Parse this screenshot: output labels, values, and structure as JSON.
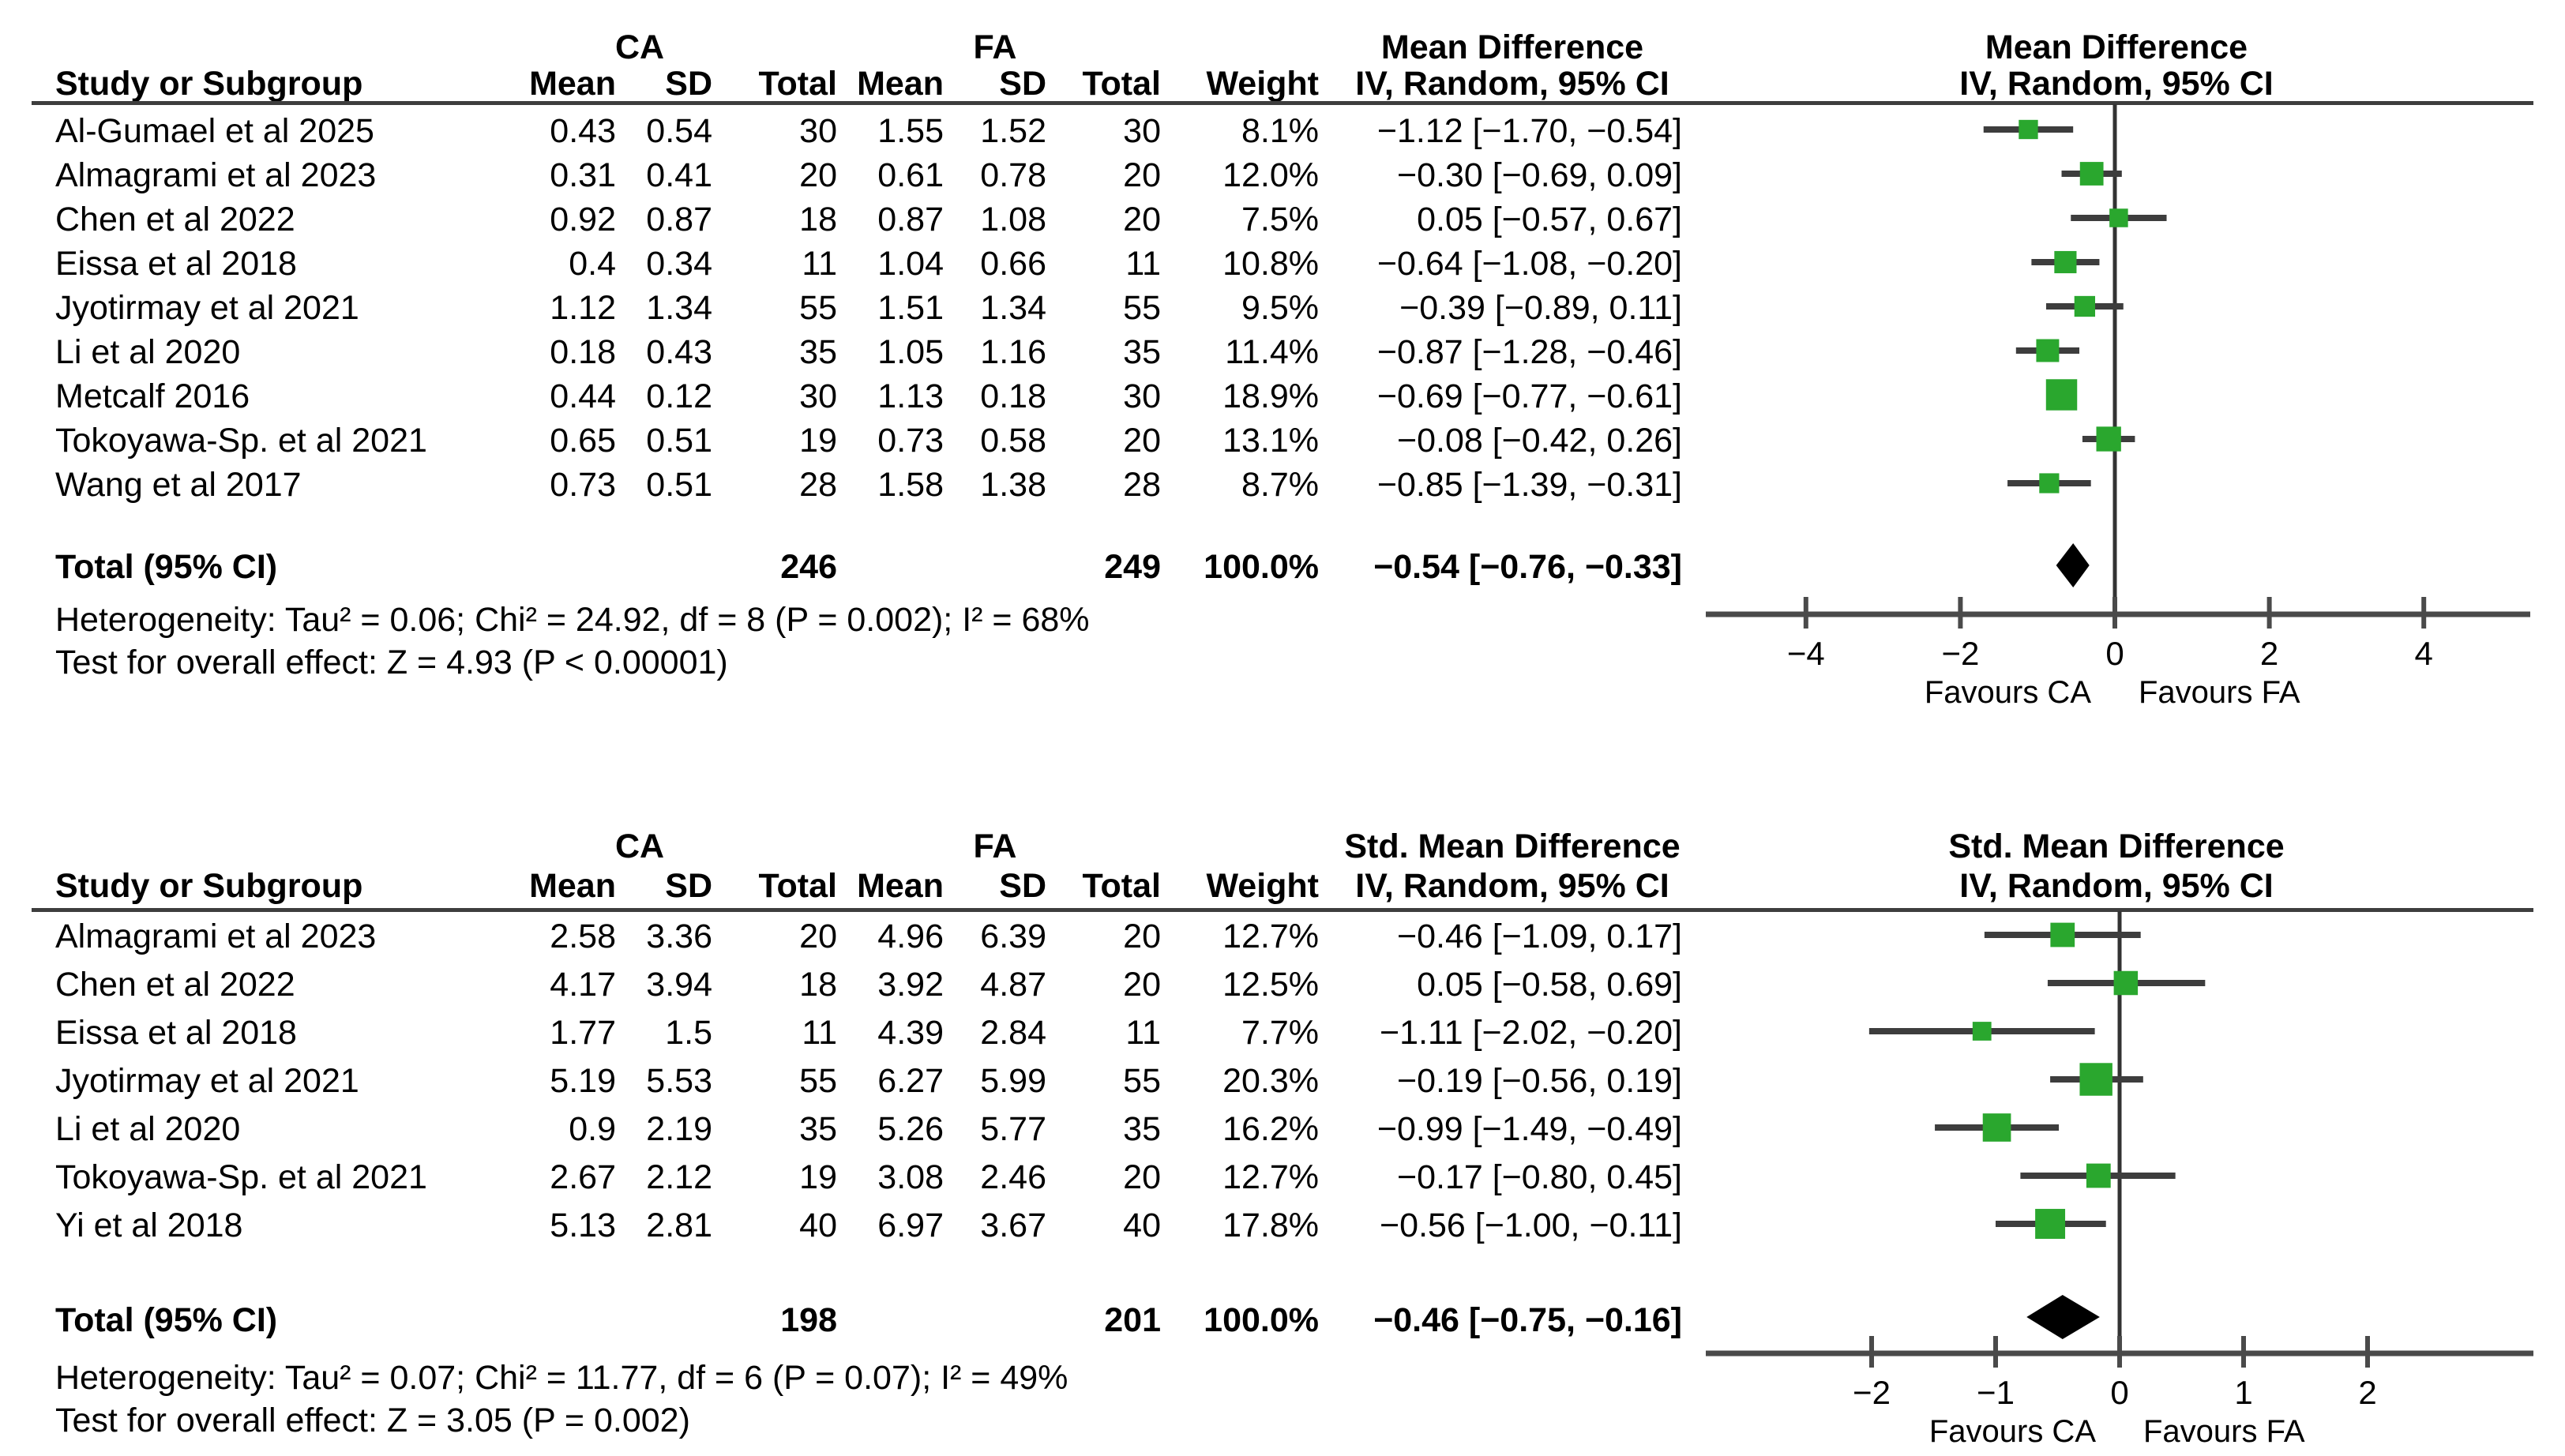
{
  "figure": {
    "background": "#ffffff",
    "description_left_axis_label": "Favours CA",
    "description_right_axis_label": "Favours FA"
  },
  "chart_data": [
    {
      "type": "forest",
      "effect_label": "Mean Difference",
      "method_label": "IV, Random, 95% CI",
      "group1_label": "CA",
      "group2_label": "FA",
      "columns": [
        "Study or Subgroup",
        "Mean",
        "SD",
        "Total",
        "Mean",
        "SD",
        "Total",
        "Weight",
        "IV, Random, 95% CI"
      ],
      "studies": [
        {
          "name": "Al-Gumael et al 2025",
          "g1_mean": "0.43",
          "g1_sd": "0.54",
          "g1_total": "30",
          "g2_mean": "1.55",
          "g2_sd": "1.52",
          "g2_total": "30",
          "weight": "8.1%",
          "ci_text": "−1.12 [−1.70, −0.54]",
          "est": -1.12,
          "lo": -1.7,
          "hi": -0.54,
          "weight_pct": 8.1
        },
        {
          "name": "Almagrami et al 2023",
          "g1_mean": "0.31",
          "g1_sd": "0.41",
          "g1_total": "20",
          "g2_mean": "0.61",
          "g2_sd": "0.78",
          "g2_total": "20",
          "weight": "12.0%",
          "ci_text": "−0.30 [−0.69, 0.09]",
          "est": -0.3,
          "lo": -0.69,
          "hi": 0.09,
          "weight_pct": 12.0
        },
        {
          "name": "Chen et al 2022",
          "g1_mean": "0.92",
          "g1_sd": "0.87",
          "g1_total": "18",
          "g2_mean": "0.87",
          "g2_sd": "1.08",
          "g2_total": "20",
          "weight": "7.5%",
          "ci_text": "0.05 [−0.57, 0.67]",
          "est": 0.05,
          "lo": -0.57,
          "hi": 0.67,
          "weight_pct": 7.5
        },
        {
          "name": "Eissa et al 2018",
          "g1_mean": "0.4",
          "g1_sd": "0.34",
          "g1_total": "11",
          "g2_mean": "1.04",
          "g2_sd": "0.66",
          "g2_total": "11",
          "weight": "10.8%",
          "ci_text": "−0.64 [−1.08, −0.20]",
          "est": -0.64,
          "lo": -1.08,
          "hi": -0.2,
          "weight_pct": 10.8
        },
        {
          "name": "Jyotirmay et al 2021",
          "g1_mean": "1.12",
          "g1_sd": "1.34",
          "g1_total": "55",
          "g2_mean": "1.51",
          "g2_sd": "1.34",
          "g2_total": "55",
          "weight": "9.5%",
          "ci_text": "−0.39 [−0.89, 0.11]",
          "est": -0.39,
          "lo": -0.89,
          "hi": 0.11,
          "weight_pct": 9.5
        },
        {
          "name": "Li et al 2020",
          "g1_mean": "0.18",
          "g1_sd": "0.43",
          "g1_total": "35",
          "g2_mean": "1.05",
          "g2_sd": "1.16",
          "g2_total": "35",
          "weight": "11.4%",
          "ci_text": "−0.87 [−1.28, −0.46]",
          "est": -0.87,
          "lo": -1.28,
          "hi": -0.46,
          "weight_pct": 11.4
        },
        {
          "name": "Metcalf 2016",
          "g1_mean": "0.44",
          "g1_sd": "0.12",
          "g1_total": "30",
          "g2_mean": "1.13",
          "g2_sd": "0.18",
          "g2_total": "30",
          "weight": "18.9%",
          "ci_text": "−0.69 [−0.77, −0.61]",
          "est": -0.69,
          "lo": -0.77,
          "hi": -0.61,
          "weight_pct": 18.9
        },
        {
          "name": "Tokoyawa-Sp. et al 2021",
          "g1_mean": "0.65",
          "g1_sd": "0.51",
          "g1_total": "19",
          "g2_mean": "0.73",
          "g2_sd": "0.58",
          "g2_total": "20",
          "weight": "13.1%",
          "ci_text": "−0.08 [−0.42, 0.26]",
          "est": -0.08,
          "lo": -0.42,
          "hi": 0.26,
          "weight_pct": 13.1
        },
        {
          "name": "Wang et al 2017",
          "g1_mean": "0.73",
          "g1_sd": "0.51",
          "g1_total": "28",
          "g2_mean": "1.58",
          "g2_sd": "1.38",
          "g2_total": "28",
          "weight": "8.7%",
          "ci_text": "−0.85 [−1.39, −0.31]",
          "est": -0.85,
          "lo": -1.39,
          "hi": -0.31,
          "weight_pct": 8.7
        }
      ],
      "total": {
        "label": "Total (95% CI)",
        "g1_total": "246",
        "g2_total": "249",
        "weight": "100.0%",
        "ci_text": "−0.54 [−0.76, −0.33]",
        "est": -0.54,
        "lo": -0.76,
        "hi": -0.33
      },
      "heterogeneity": "Heterogeneity: Tau² = 0.06; Chi² = 24.92, df = 8 (P = 0.002); I² = 68%",
      "overall_effect": "Test for overall effect: Z = 4.93 (P < 0.00001)",
      "axis": {
        "tick_values": [
          -4,
          -2,
          0,
          2,
          4
        ],
        "tick_labels": [
          "−4",
          "−2",
          "0",
          "2",
          "4"
        ],
        "xlim": [
          -5.35,
          5.35
        ],
        "favours_left": "Favours CA",
        "favours_right": "Favours FA"
      },
      "colors": {
        "marker": "#2aa72e",
        "ci_line": "#3d3d3d",
        "diamond": "#000000",
        "axis": "#4a4a4a",
        "zero_line": "#333333"
      }
    },
    {
      "type": "forest",
      "effect_label": "Std. Mean Difference",
      "method_label": "IV, Random, 95% CI",
      "group1_label": "CA",
      "group2_label": "FA",
      "columns": [
        "Study or Subgroup",
        "Mean",
        "SD",
        "Total",
        "Mean",
        "SD",
        "Total",
        "Weight",
        "IV, Random, 95% CI"
      ],
      "studies": [
        {
          "name": "Almagrami et al 2023",
          "g1_mean": "2.58",
          "g1_sd": "3.36",
          "g1_total": "20",
          "g2_mean": "4.96",
          "g2_sd": "6.39",
          "g2_total": "20",
          "weight": "12.7%",
          "ci_text": "−0.46 [−1.09, 0.17]",
          "est": -0.46,
          "lo": -1.09,
          "hi": 0.17,
          "weight_pct": 12.7
        },
        {
          "name": "Chen et al 2022",
          "g1_mean": "4.17",
          "g1_sd": "3.94",
          "g1_total": "18",
          "g2_mean": "3.92",
          "g2_sd": "4.87",
          "g2_total": "20",
          "weight": "12.5%",
          "ci_text": "0.05 [−0.58, 0.69]",
          "est": 0.05,
          "lo": -0.58,
          "hi": 0.69,
          "weight_pct": 12.5
        },
        {
          "name": "Eissa et al 2018",
          "g1_mean": "1.77",
          "g1_sd": "1.5",
          "g1_total": "11",
          "g2_mean": "4.39",
          "g2_sd": "2.84",
          "g2_total": "11",
          "weight": "7.7%",
          "ci_text": "−1.11 [−2.02, −0.20]",
          "est": -1.11,
          "lo": -2.02,
          "hi": -0.2,
          "weight_pct": 7.7
        },
        {
          "name": "Jyotirmay et al 2021",
          "g1_mean": "5.19",
          "g1_sd": "5.53",
          "g1_total": "55",
          "g2_mean": "6.27",
          "g2_sd": "5.99",
          "g2_total": "55",
          "weight": "20.3%",
          "ci_text": "−0.19 [−0.56, 0.19]",
          "est": -0.19,
          "lo": -0.56,
          "hi": 0.19,
          "weight_pct": 20.3
        },
        {
          "name": "Li et al 2020",
          "g1_mean": "0.9",
          "g1_sd": "2.19",
          "g1_total": "35",
          "g2_mean": "5.26",
          "g2_sd": "5.77",
          "g2_total": "35",
          "weight": "16.2%",
          "ci_text": "−0.99 [−1.49, −0.49]",
          "est": -0.99,
          "lo": -1.49,
          "hi": -0.49,
          "weight_pct": 16.2
        },
        {
          "name": "Tokoyawa-Sp. et al 2021",
          "g1_mean": "2.67",
          "g1_sd": "2.12",
          "g1_total": "19",
          "g2_mean": "3.08",
          "g2_sd": "2.46",
          "g2_total": "20",
          "weight": "12.7%",
          "ci_text": "−0.17 [−0.80, 0.45]",
          "est": -0.17,
          "lo": -0.8,
          "hi": 0.45,
          "weight_pct": 12.7
        },
        {
          "name": "Yi et al 2018",
          "g1_mean": "5.13",
          "g1_sd": "2.81",
          "g1_total": "40",
          "g2_mean": "6.97",
          "g2_sd": "3.67",
          "g2_total": "40",
          "weight": "17.8%",
          "ci_text": "−0.56 [−1.00, −0.11]",
          "est": -0.56,
          "lo": -1.0,
          "hi": -0.11,
          "weight_pct": 17.8
        }
      ],
      "total": {
        "label": "Total (95% CI)",
        "g1_total": "198",
        "g2_total": "201",
        "weight": "100.0%",
        "ci_text": "−0.46 [−0.75, −0.16]",
        "est": -0.46,
        "lo": -0.75,
        "hi": -0.16
      },
      "heterogeneity": "Heterogeneity: Tau² = 0.07; Chi² = 11.77, df = 6 (P = 0.07); I² = 49%",
      "overall_effect": "Test for overall effect: Z = 3.05 (P = 0.002)",
      "axis": {
        "tick_values": [
          -2,
          -1,
          0,
          1,
          2
        ],
        "tick_labels": [
          "−2",
          "−1",
          "0",
          "1",
          "2"
        ],
        "xlim": [
          -3.35,
          3.35
        ],
        "favours_left": "Favours CA",
        "favours_right": "Favours FA"
      },
      "colors": {
        "marker": "#2aa72e",
        "ci_line": "#3d3d3d",
        "diamond": "#000000",
        "axis": "#4a4a4a",
        "zero_line": "#333333"
      }
    }
  ]
}
